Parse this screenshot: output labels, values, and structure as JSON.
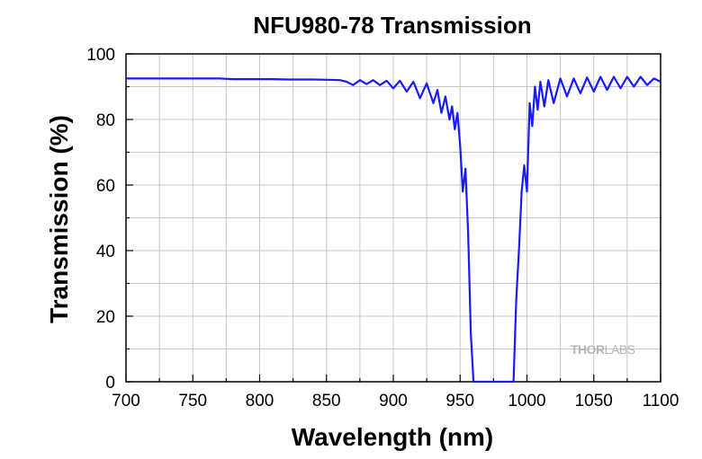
{
  "chart_data": {
    "type": "line",
    "title": "NFU980-78 Transmission",
    "xlabel": "Wavelength (nm)",
    "ylabel": "Transmission (%)",
    "xlim": [
      700,
      1100
    ],
    "ylim": [
      0,
      100
    ],
    "xticks": [
      700,
      750,
      800,
      850,
      900,
      950,
      1000,
      1050,
      1100
    ],
    "yticks": [
      0,
      20,
      40,
      60,
      80,
      100
    ],
    "grid": true,
    "series": [
      {
        "color": "#1a1aff",
        "x": [
          700,
          710,
          720,
          730,
          740,
          750,
          760,
          770,
          780,
          790,
          800,
          810,
          820,
          830,
          840,
          850,
          860,
          865,
          870,
          875,
          880,
          885,
          890,
          895,
          900,
          905,
          910,
          915,
          920,
          925,
          930,
          933,
          936,
          939,
          942,
          944,
          946,
          948,
          950,
          952,
          954,
          956,
          958,
          960,
          965,
          970,
          975,
          980,
          985,
          990,
          992,
          994,
          996,
          998,
          1000,
          1002,
          1004,
          1006,
          1008,
          1010,
          1013,
          1016,
          1020,
          1025,
          1030,
          1035,
          1040,
          1045,
          1050,
          1055,
          1060,
          1065,
          1070,
          1075,
          1080,
          1085,
          1090,
          1095,
          1100
        ],
        "y": [
          92.5,
          92.5,
          92.5,
          92.5,
          92.5,
          92.5,
          92.5,
          92.5,
          92.3,
          92.3,
          92.3,
          92.3,
          92.2,
          92.2,
          92.2,
          92.1,
          92.0,
          91.5,
          90.5,
          92.0,
          90.8,
          92.0,
          90.5,
          91.8,
          89.5,
          91.8,
          88.5,
          91.5,
          86.5,
          91.0,
          85.0,
          89.0,
          82.0,
          87.0,
          80.0,
          84.0,
          77.0,
          82.0,
          72.0,
          58.0,
          65.0,
          45.0,
          15.0,
          0,
          0,
          0,
          0,
          0,
          0,
          0,
          25.0,
          40.0,
          58.0,
          66.0,
          58.0,
          85.0,
          78.0,
          90.0,
          83.0,
          91.5,
          84.0,
          92.0,
          85.0,
          92.5,
          87.0,
          92.5,
          88.0,
          92.8,
          88.5,
          93.0,
          89.0,
          93.0,
          89.5,
          93.0,
          90.0,
          93.0,
          90.5,
          92.5,
          91.5
        ]
      }
    ]
  },
  "watermark": {
    "thor": "THOR",
    "labs": "LABS"
  }
}
